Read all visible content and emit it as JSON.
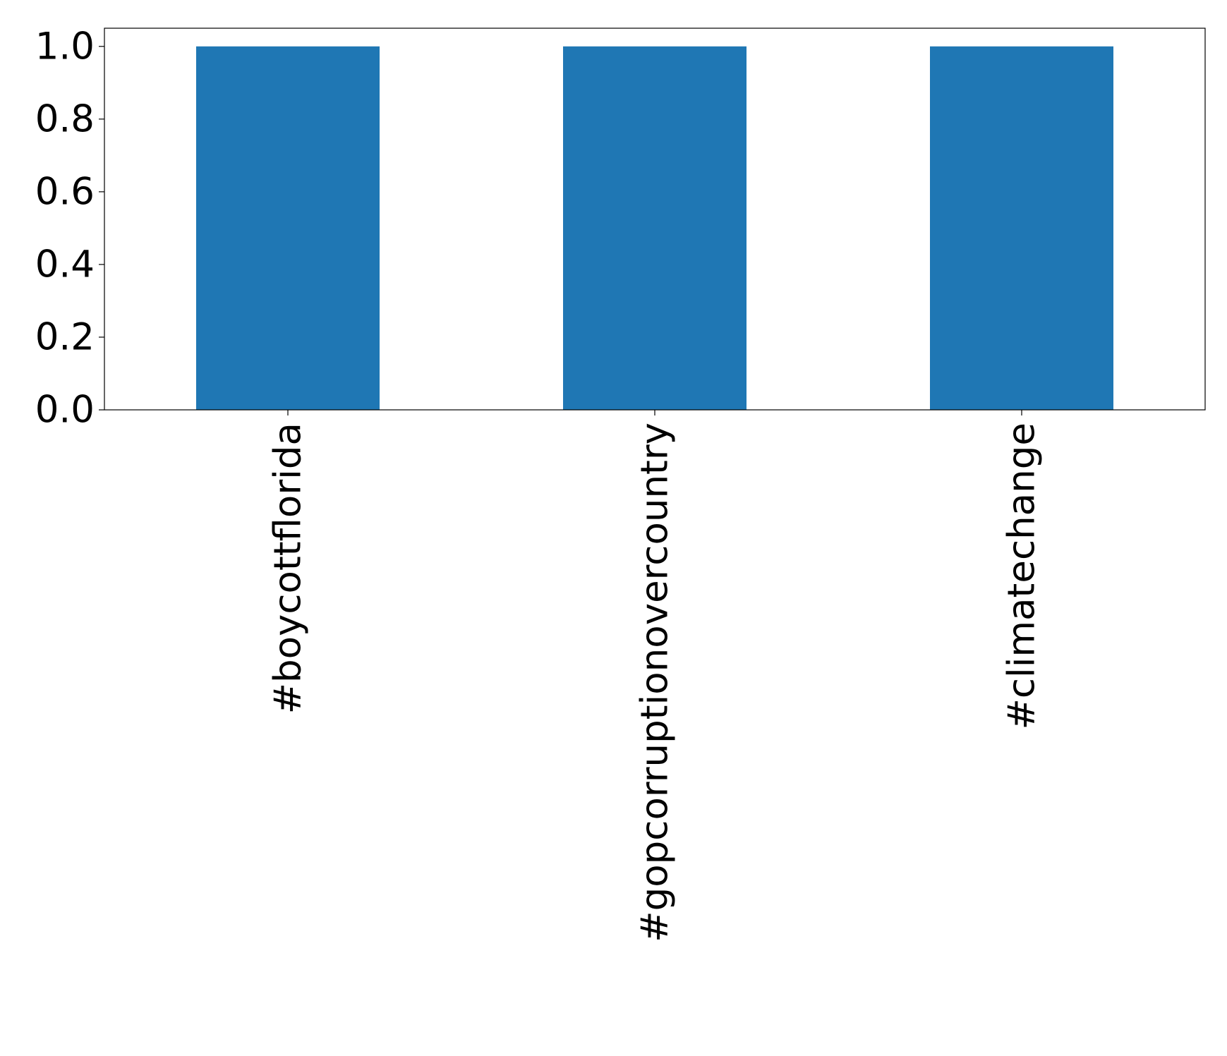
{
  "chart_data": {
    "type": "bar",
    "categories": [
      "#boycottflorida",
      "#gopcorruptionovercountry",
      "#climatechange"
    ],
    "values": [
      1.0,
      1.0,
      1.0
    ],
    "color": "#1f77b4",
    "ylim": [
      0,
      1.05
    ],
    "yticks": [
      {
        "value": 0,
        "label": "0.0"
      },
      {
        "value": 0.2,
        "label": "0.2"
      },
      {
        "value": 0.4,
        "label": "0.4"
      },
      {
        "value": 0.6,
        "label": "0.6"
      },
      {
        "value": 0.8,
        "label": "0.8"
      },
      {
        "value": 1.0,
        "label": "1.0"
      }
    ],
    "grid": false
  }
}
